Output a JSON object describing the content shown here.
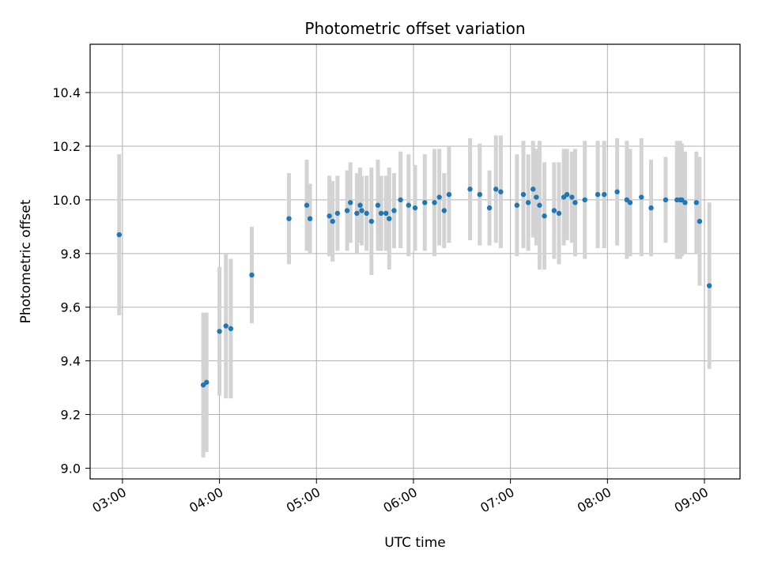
{
  "chart_data": {
    "type": "scatter",
    "title": "Photometric offset variation",
    "xlabel": "UTC time",
    "ylabel": "Photometric offset",
    "xlim": [
      "02:40",
      "09:22"
    ],
    "ylim": [
      8.96,
      10.58
    ],
    "x_ticks": [
      "03:00",
      "04:00",
      "05:00",
      "06:00",
      "07:00",
      "08:00",
      "09:00"
    ],
    "y_ticks": [
      "9.0",
      "9.2",
      "9.4",
      "9.6",
      "9.8",
      "10.0",
      "10.2",
      "10.4"
    ],
    "grid": true,
    "colors": {
      "point": "#1f77b4",
      "errorbar": "#d3d3d3",
      "grid": "#b0b0b0"
    },
    "series": [
      {
        "x": [
          "02:58",
          "03:50",
          "03:52",
          "04:00",
          "04:04",
          "04:07",
          "04:20",
          "04:43",
          "04:54",
          "04:56",
          "05:08",
          "05:10",
          "05:13",
          "05:19",
          "05:21",
          "05:25",
          "05:27",
          "05:28",
          "05:31",
          "05:34",
          "05:38",
          "05:40",
          "05:43",
          "05:45",
          "05:48",
          "05:52",
          "05:57",
          "06:01",
          "06:07",
          "06:13",
          "06:16",
          "06:19",
          "06:22",
          "06:35",
          "06:41",
          "06:47",
          "06:51",
          "06:54",
          "07:04",
          "07:08",
          "07:11",
          "07:14",
          "07:16",
          "07:18",
          "07:21",
          "07:27",
          "07:30",
          "07:33",
          "07:35",
          "07:38",
          "07:40",
          "07:46",
          "07:54",
          "07:58",
          "08:06",
          "08:12",
          "08:14",
          "08:21",
          "08:27",
          "08:36",
          "08:43",
          "08:45",
          "08:46",
          "08:48",
          "08:55",
          "08:57",
          "09:03"
        ],
        "y": [
          9.87,
          9.31,
          9.32,
          9.51,
          9.53,
          9.52,
          9.72,
          9.93,
          9.98,
          9.93,
          9.94,
          9.92,
          9.95,
          9.96,
          9.99,
          9.95,
          9.98,
          9.96,
          9.95,
          9.92,
          9.98,
          9.95,
          9.95,
          9.93,
          9.96,
          10.0,
          9.98,
          9.97,
          9.99,
          9.99,
          10.01,
          9.96,
          10.02,
          10.04,
          10.02,
          9.97,
          10.04,
          10.03,
          9.98,
          10.02,
          9.99,
          10.04,
          10.01,
          9.98,
          9.94,
          9.96,
          9.95,
          10.01,
          10.02,
          10.01,
          9.99,
          10.0,
          10.02,
          10.02,
          10.03,
          10.0,
          9.99,
          10.01,
          9.97,
          10.0,
          10.0,
          10.0,
          10.0,
          9.99,
          9.99,
          9.92,
          9.68
        ],
        "err": [
          0.3,
          0.27,
          0.26,
          0.24,
          0.27,
          0.26,
          0.18,
          0.17,
          0.17,
          0.13,
          0.15,
          0.15,
          0.14,
          0.15,
          0.15,
          0.15,
          0.14,
          0.13,
          0.14,
          0.2,
          0.17,
          0.14,
          0.14,
          0.19,
          0.14,
          0.18,
          0.19,
          0.16,
          0.18,
          0.2,
          0.18,
          0.14,
          0.18,
          0.19,
          0.19,
          0.14,
          0.2,
          0.21,
          0.19,
          0.2,
          0.18,
          0.18,
          0.18,
          0.24,
          0.2,
          0.18,
          0.19,
          0.18,
          0.17,
          0.17,
          0.2,
          0.22,
          0.2,
          0.2,
          0.2,
          0.22,
          0.2,
          0.22,
          0.18,
          0.16,
          0.22,
          0.22,
          0.21,
          0.19,
          0.19,
          0.24,
          0.31
        ]
      }
    ]
  }
}
